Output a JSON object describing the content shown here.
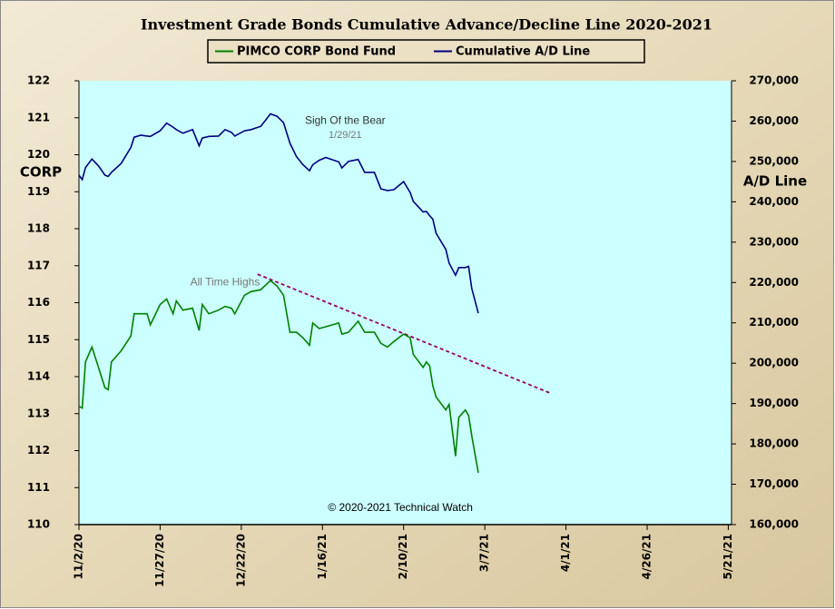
{
  "chart_data": {
    "type": "line",
    "title": "Investment Grade Bonds Cumulative Advance/Decline Line 2020-2021",
    "y_label": "CORP",
    "y2_label": "A/D Line",
    "xlim": [
      "2020-11-02",
      "2021-05-22"
    ],
    "xticks": [
      {
        "value": "2020-11-02",
        "label": "11/2/20"
      },
      {
        "value": "2020-11-27",
        "label": "11/27/20"
      },
      {
        "value": "2020-12-22",
        "label": "12/22/20"
      },
      {
        "value": "2021-01-16",
        "label": "1/16/21"
      },
      {
        "value": "2021-02-10",
        "label": "2/10/21"
      },
      {
        "value": "2021-03-07",
        "label": "3/7/21"
      },
      {
        "value": "2021-04-01",
        "label": "4/1/21"
      },
      {
        "value": "2021-04-26",
        "label": "4/26/21"
      },
      {
        "value": "2021-05-21",
        "label": "5/21/21"
      }
    ],
    "ylim": [
      110,
      122
    ],
    "yticks": [
      110,
      111,
      112,
      113,
      114,
      115,
      116,
      117,
      118,
      119,
      120,
      121,
      122
    ],
    "y2lim": [
      160000,
      270000
    ],
    "y2ticks": [
      {
        "value": 160000,
        "label": "160,000"
      },
      {
        "value": 170000,
        "label": "170,000"
      },
      {
        "value": 180000,
        "label": "180,000"
      },
      {
        "value": 190000,
        "label": "190,000"
      },
      {
        "value": 200000,
        "label": "200,000"
      },
      {
        "value": 210000,
        "label": "210,000"
      },
      {
        "value": 220000,
        "label": "220,000"
      },
      {
        "value": 230000,
        "label": "230,000"
      },
      {
        "value": 240000,
        "label": "240,000"
      },
      {
        "value": 250000,
        "label": "250,000"
      },
      {
        "value": 260000,
        "label": "260,000"
      },
      {
        "value": 270000,
        "label": "270,000"
      }
    ],
    "x": [
      "2020-11-02",
      "2020-11-03",
      "2020-11-04",
      "2020-11-06",
      "2020-11-08",
      "2020-11-10",
      "2020-11-11",
      "2020-11-12",
      "2020-11-15",
      "2020-11-18",
      "2020-11-19",
      "2020-11-21",
      "2020-11-23",
      "2020-11-24",
      "2020-11-27",
      "2020-11-29",
      "2020-12-01",
      "2020-12-02",
      "2020-12-04",
      "2020-12-07",
      "2020-12-09",
      "2020-12-10",
      "2020-12-12",
      "2020-12-15",
      "2020-12-17",
      "2020-12-19",
      "2020-12-20",
      "2020-12-23",
      "2020-12-25",
      "2020-12-28",
      "2020-12-31",
      "2021-01-02",
      "2021-01-04",
      "2021-01-06",
      "2021-01-08",
      "2021-01-10",
      "2021-01-12",
      "2021-01-13",
      "2021-01-15",
      "2021-01-17",
      "2021-01-21",
      "2021-01-22",
      "2021-01-24",
      "2021-01-27",
      "2021-01-29",
      "2021-02-01",
      "2021-02-03",
      "2021-02-05",
      "2021-02-07",
      "2021-02-10",
      "2021-02-12",
      "2021-02-13",
      "2021-02-16",
      "2021-02-17",
      "2021-02-18",
      "2021-02-19",
      "2021-02-20",
      "2021-02-23",
      "2021-02-24",
      "2021-02-26",
      "2021-02-27",
      "2021-03-01",
      "2021-03-02",
      "2021-03-03",
      "2021-03-05"
    ],
    "series": [
      {
        "name": "PIMCO CORP Bond Fund",
        "color": "#008000",
        "axis": "y",
        "values": [
          113.2,
          113.15,
          114.4,
          114.8,
          114.25,
          113.7,
          113.65,
          114.4,
          114.7,
          115.1,
          115.7,
          115.7,
          115.7,
          115.4,
          115.95,
          116.1,
          115.7,
          116.05,
          115.8,
          115.85,
          115.25,
          115.95,
          115.7,
          115.8,
          115.9,
          115.85,
          115.7,
          116.2,
          116.3,
          116.35,
          116.6,
          116.45,
          116.2,
          115.2,
          115.2,
          115.05,
          114.85,
          115.45,
          115.3,
          115.35,
          115.45,
          115.15,
          115.2,
          115.5,
          115.2,
          115.2,
          114.9,
          114.8,
          114.95,
          115.15,
          115.05,
          114.6,
          114.25,
          114.4,
          114.3,
          113.75,
          113.45,
          113.1,
          113.25,
          111.85,
          112.9,
          113.1,
          112.95,
          112.4,
          111.4
        ]
      },
      {
        "name": "Cumulative A/D Line",
        "color": "#000080",
        "axis": "y2",
        "values": [
          246600,
          245500,
          248500,
          250600,
          248900,
          246600,
          246300,
          247300,
          249500,
          253500,
          256000,
          256500,
          256300,
          256200,
          257600,
          259500,
          258500,
          257900,
          257000,
          257900,
          253900,
          255800,
          256200,
          256300,
          257900,
          257200,
          256300,
          257600,
          257900,
          258700,
          261800,
          261200,
          259600,
          254500,
          251200,
          249200,
          247700,
          249200,
          250300,
          251000,
          249900,
          248400,
          250000,
          250500,
          247300,
          247300,
          243200,
          242800,
          243000,
          245000,
          242300,
          240100,
          237500,
          237600,
          236600,
          235700,
          232200,
          228200,
          224800,
          221800,
          223700,
          223700,
          224000,
          218500,
          212400
        ]
      }
    ],
    "trendline": {
      "color": "#990066",
      "x": [
        "2020-12-27",
        "2021-03-27"
      ],
      "values": [
        116.77,
        113.56
      ]
    },
    "annotations": [
      {
        "text": "Sigh Of the Bear",
        "x": "2021-01-23",
        "value": 260000,
        "axis": "y2"
      },
      {
        "text": "1/29/21",
        "x": "2021-01-23",
        "value": 256500,
        "axis": "y2"
      },
      {
        "text": "All Time Highs",
        "x": "2020-12-17",
        "value": 116.55,
        "axis": "y"
      },
      {
        "text": "© 2020-2021 Technical Watch",
        "x": "2021-02-09",
        "value": 110.45,
        "axis": "y"
      }
    ]
  }
}
